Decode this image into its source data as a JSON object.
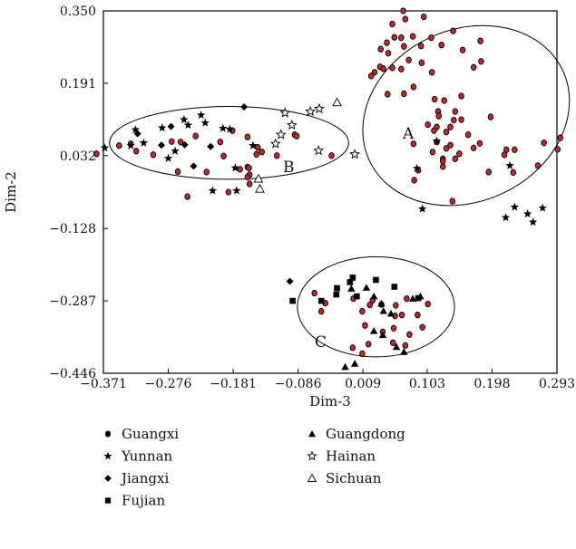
{
  "chart_data": {
    "type": "scatter",
    "title": "",
    "xlabel": "Dim-3",
    "ylabel": "Dim-2",
    "xlim": [
      -0.371,
      0.293
    ],
    "ylim": [
      -0.446,
      0.35
    ],
    "xticks": [
      "-0.371",
      "-0.276",
      "-0.181",
      "-0.086",
      "0.009",
      "0.103",
      "0.198",
      "0.293"
    ],
    "yticks": [
      "0.350",
      "0.191",
      "0.032",
      "-0.128",
      "-0.287",
      "-0.446"
    ],
    "grid": false,
    "legend_position": "bottom",
    "point_color": "#c0282d",
    "clusters": [
      {
        "label": "A",
        "center": [
          0.16,
          0.12
        ],
        "radius_x": 0.126,
        "radius_y": 0.234,
        "rotation_deg": 65
      },
      {
        "label": "B",
        "center": [
          -0.187,
          0.06
        ],
        "radius_x": 0.175,
        "radius_y": 0.08,
        "rotation_deg": 0
      },
      {
        "label": "C",
        "center": [
          0.028,
          -0.3
        ],
        "radius_x": 0.115,
        "radius_y": 0.11,
        "rotation_deg": 0
      }
    ],
    "series": [
      {
        "name": "Guangxi",
        "symbol": "circle",
        "points": [
          [
            0.068,
            0.35
          ],
          [
            0.071,
            0.332
          ],
          [
            0.098,
            0.337
          ],
          [
            0.141,
            0.306
          ],
          [
            0.052,
            0.321
          ],
          [
            0.055,
            0.292
          ],
          [
            0.065,
            0.291
          ],
          [
            0.044,
            0.28
          ],
          [
            0.082,
            0.294
          ],
          [
            0.109,
            0.291
          ],
          [
            0.124,
            0.275
          ],
          [
            0.069,
            0.272
          ],
          [
            0.035,
            0.266
          ],
          [
            0.046,
            0.257
          ],
          [
            0.034,
            0.227
          ],
          [
            0.076,
            0.242
          ],
          [
            0.094,
            0.273
          ],
          [
            0.155,
            0.264
          ],
          [
            0.181,
            0.284
          ],
          [
            0.052,
            0.225
          ],
          [
            0.026,
            0.215
          ],
          [
            0.021,
            0.207
          ],
          [
            0.039,
            0.223
          ],
          [
            0.065,
            0.222
          ],
          [
            0.095,
            0.236
          ],
          [
            0.182,
            0.239
          ],
          [
            0.171,
            0.226
          ],
          [
            0.11,
            0.215
          ],
          [
            0.083,
            0.183
          ],
          [
            0.069,
            0.168
          ],
          [
            0.045,
            0.167
          ],
          [
            0.128,
            0.153
          ],
          [
            0.153,
            0.163
          ],
          [
            0.114,
            0.156
          ],
          [
            0.144,
            0.129
          ],
          [
            0.142,
            0.11
          ],
          [
            0.153,
            0.111
          ],
          [
            0.196,
            0.117
          ],
          [
            0.119,
            0.129
          ],
          [
            0.12,
            0.119
          ],
          [
            0.117,
            0.095
          ],
          [
            0.113,
            0.087
          ],
          [
            0.104,
            0.1
          ],
          [
            0.137,
            0.095
          ],
          [
            0.117,
            0.062
          ],
          [
            0.131,
            0.084
          ],
          [
            0.171,
            0.049
          ],
          [
            0.126,
            0.025
          ],
          [
            0.126,
            0.02
          ],
          [
            0.15,
            0.036
          ],
          [
            0.137,
            0.055
          ],
          [
            0.131,
            0.048
          ],
          [
            0.163,
            0.078
          ],
          [
            0.18,
            0.059
          ],
          [
            0.144,
            0.025
          ],
          [
            0.126,
            0.008
          ],
          [
            0.111,
            0.04
          ],
          [
            0.083,
            0.058
          ],
          [
            0.09,
            0.0
          ],
          [
            0.084,
            -0.022
          ],
          [
            0.219,
            0.045
          ],
          [
            0.216,
            0.034
          ],
          [
            0.274,
            0.06
          ],
          [
            0.298,
            0.071
          ],
          [
            0.193,
            -0.004
          ],
          [
            0.229,
            -0.005
          ],
          [
            0.231,
            0.045
          ],
          [
            0.265,
            0.01
          ],
          [
            0.294,
            0.046
          ],
          [
            0.14,
            -0.068
          ],
          [
            -0.381,
            0.036
          ],
          [
            -0.348,
            0.054
          ],
          [
            -0.331,
            0.058
          ],
          [
            -0.323,
            0.042
          ],
          [
            -0.298,
            0.034
          ],
          [
            -0.271,
            0.063
          ],
          [
            -0.258,
            0.062
          ],
          [
            -0.236,
            0.075
          ],
          [
            -0.2,
            0.062
          ],
          [
            -0.182,
            0.087
          ],
          [
            -0.16,
            0.073
          ],
          [
            -0.145,
            0.05
          ],
          [
            -0.139,
            0.04
          ],
          [
            -0.147,
            0.035
          ],
          [
            -0.117,
            0.032
          ],
          [
            -0.091,
            0.078
          ],
          [
            -0.088,
            0.075
          ],
          [
            -0.037,
            0.032
          ],
          [
            -0.262,
            -0.003
          ],
          [
            -0.22,
            -0.004
          ],
          [
            -0.195,
            0.031
          ],
          [
            -0.171,
            0.002
          ],
          [
            -0.16,
            0.007
          ],
          [
            -0.157,
            -0.01
          ],
          [
            -0.16,
            -0.015
          ],
          [
            -0.157,
            -0.03
          ],
          [
            -0.188,
            -0.048
          ],
          [
            -0.248,
            -0.058
          ],
          [
            -0.158,
            0.005
          ],
          [
            -0.062,
            -0.27
          ],
          [
            -0.046,
            -0.292
          ],
          [
            -0.052,
            -0.31
          ],
          [
            -0.005,
            -0.282
          ],
          [
            0.008,
            -0.31
          ],
          [
            0.019,
            -0.296
          ],
          [
            0.023,
            -0.286
          ],
          [
            0.012,
            -0.341
          ],
          [
            -0.006,
            -0.39
          ],
          [
            0.017,
            -0.382
          ],
          [
            0.008,
            -0.403
          ],
          [
            0.038,
            -0.355
          ],
          [
            0.054,
            -0.347
          ],
          [
            0.056,
            -0.32
          ],
          [
            0.057,
            -0.297
          ],
          [
            0.036,
            -0.295
          ],
          [
            0.073,
            -0.282
          ],
          [
            0.066,
            -0.318
          ],
          [
            0.077,
            -0.361
          ],
          [
            0.089,
            -0.318
          ],
          [
            0.104,
            -0.294
          ],
          [
            0.096,
            -0.345
          ],
          [
            0.071,
            -0.385
          ],
          [
            0.053,
            -0.379
          ]
        ]
      },
      {
        "name": "Yunnan",
        "symbol": "star",
        "points": [
          [
            -0.369,
            0.049
          ],
          [
            -0.331,
            0.054
          ],
          [
            -0.324,
            0.089
          ],
          [
            -0.285,
            0.093
          ],
          [
            -0.253,
            0.111
          ],
          [
            -0.247,
            0.099
          ],
          [
            -0.228,
            0.121
          ],
          [
            -0.222,
            0.104
          ],
          [
            -0.196,
            0.092
          ],
          [
            -0.186,
            0.09
          ],
          [
            -0.178,
            0.005
          ],
          [
            -0.152,
            0.054
          ],
          [
            -0.176,
            -0.045
          ],
          [
            -0.276,
            0.026
          ],
          [
            -0.266,
            0.042
          ],
          [
            -0.211,
            -0.045
          ],
          [
            -0.312,
            0.06
          ],
          [
            0.117,
            0.064
          ],
          [
            0.231,
            -0.081
          ],
          [
            0.224,
            0.01
          ],
          [
            0.218,
            -0.104
          ],
          [
            0.25,
            -0.096
          ],
          [
            0.272,
            -0.083
          ],
          [
            0.258,
            -0.114
          ],
          [
            0.096,
            -0.085
          ],
          [
            0.088,
            0.004
          ]
        ]
      },
      {
        "name": "Jiangxi",
        "symbol": "diamond",
        "points": [
          [
            -0.321,
            0.08
          ],
          [
            -0.286,
            0.055
          ],
          [
            -0.272,
            0.096
          ],
          [
            -0.252,
            0.056
          ],
          [
            -0.239,
            0.009
          ],
          [
            -0.214,
            0.052
          ],
          [
            -0.165,
            0.139
          ],
          [
            -0.098,
            -0.244
          ]
        ]
      },
      {
        "name": "Fujian",
        "symbol": "square",
        "points": [
          [
            -0.094,
            -0.287
          ],
          [
            -0.052,
            -0.287
          ],
          [
            -0.03,
            -0.273
          ],
          [
            -0.029,
            -0.259
          ],
          [
            -0.01,
            -0.246
          ],
          [
            -0.006,
            -0.236
          ],
          [
            0.0,
            -0.277
          ],
          [
            0.028,
            -0.241
          ],
          [
            0.055,
            -0.256
          ],
          [
            0.09,
            -0.281
          ]
        ]
      },
      {
        "name": "Guangdong",
        "symbol": "triangle",
        "points": [
          [
            -0.008,
            -0.26
          ],
          [
            0.014,
            -0.258
          ],
          [
            0.025,
            -0.277
          ],
          [
            0.036,
            -0.293
          ],
          [
            0.039,
            -0.309
          ],
          [
            0.05,
            -0.315
          ],
          [
            0.082,
            -0.282
          ],
          [
            0.093,
            -0.277
          ],
          [
            0.025,
            -0.353
          ],
          [
            0.038,
            -0.362
          ],
          [
            0.058,
            -0.388
          ],
          [
            0.069,
            -0.399
          ],
          [
            -0.003,
            -0.425
          ],
          [
            -0.017,
            -0.432
          ]
        ]
      },
      {
        "name": "Hainan",
        "symbol": "star-open",
        "points": [
          [
            -0.105,
            0.126
          ],
          [
            -0.068,
            0.129
          ],
          [
            -0.055,
            0.135
          ],
          [
            -0.095,
            0.099
          ],
          [
            -0.111,
            0.078
          ],
          [
            -0.119,
            0.058
          ],
          [
            -0.056,
            0.043
          ],
          [
            -0.003,
            0.035
          ]
        ]
      },
      {
        "name": "Sichuan",
        "symbol": "triangle-open",
        "points": [
          [
            -0.029,
            0.149
          ],
          [
            -0.144,
            -0.019
          ],
          [
            -0.142,
            -0.041
          ]
        ]
      }
    ]
  },
  "clusters": {
    "a_label": "A",
    "b_label": "B",
    "c_label": "C"
  }
}
